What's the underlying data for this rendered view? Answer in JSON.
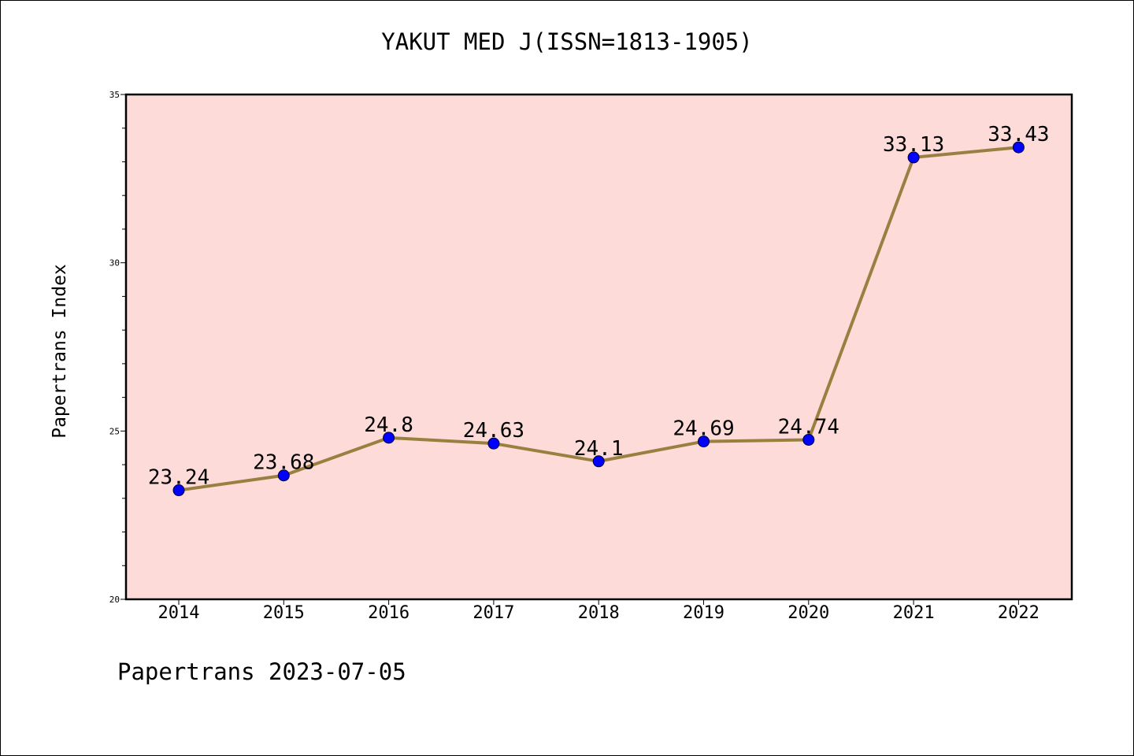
{
  "title": "YAKUT MED J(ISSN=1813-1905)",
  "footer": "Papertrans 2023-07-05",
  "colors": {
    "plot_background": "#fddbd9",
    "line": "#9a8040",
    "marker": "#0000ff"
  },
  "chart_data": {
    "type": "line",
    "title": "YAKUT MED J(ISSN=1813-1905)",
    "xlabel": "",
    "ylabel": "Papertrans Index",
    "categories": [
      "2014",
      "2015",
      "2016",
      "2017",
      "2018",
      "2019",
      "2020",
      "2021",
      "2022"
    ],
    "values": [
      23.24,
      23.68,
      24.8,
      24.63,
      24.1,
      24.69,
      24.74,
      33.13,
      33.43
    ],
    "data_labels": [
      "23.24",
      "23.68",
      "24.8",
      "24.63",
      "24.1",
      "24.69",
      "24.74",
      "33.13",
      "33.43"
    ],
    "ylim": [
      20,
      35
    ],
    "yticks": [
      "20",
      "25",
      "30",
      "35"
    ],
    "grid": false,
    "legend": "none"
  }
}
